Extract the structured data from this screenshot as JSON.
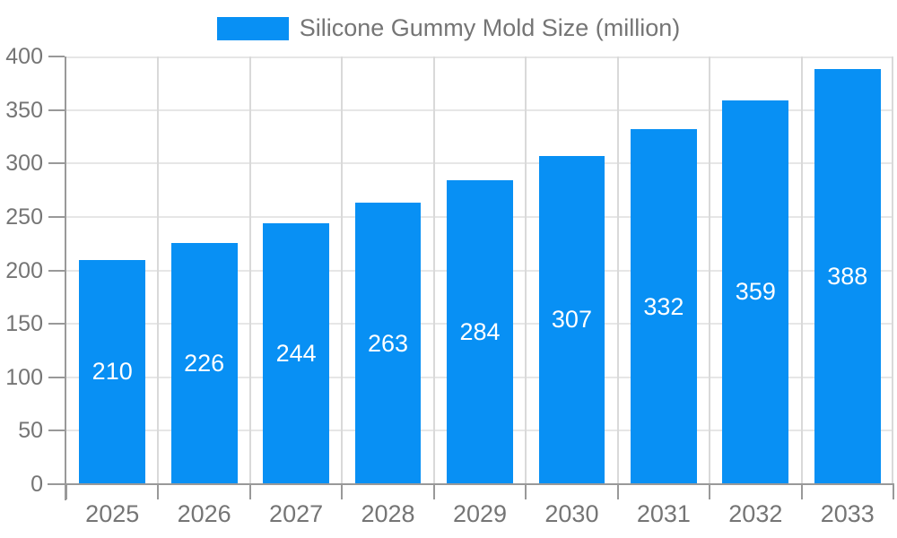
{
  "chart_data": {
    "type": "bar",
    "title": "Silicone Gummy Mold Size (million)",
    "categories": [
      "2025",
      "2026",
      "2027",
      "2028",
      "2029",
      "2030",
      "2031",
      "2032",
      "2033"
    ],
    "values": [
      210,
      226,
      244,
      263,
      284,
      307,
      332,
      359,
      388
    ],
    "xlabel": "",
    "ylabel": "",
    "ylim": [
      0,
      400
    ],
    "yticks": [
      0,
      50,
      100,
      150,
      200,
      250,
      300,
      350,
      400
    ],
    "grid": true,
    "legend_position": "top-center",
    "value_labels": "inside-center"
  },
  "legend": {
    "label": "Silicone Gummy Mold Size (million)"
  },
  "colors": {
    "bar": "#0890f4",
    "value_label": "#ffffff",
    "axis": "#999999",
    "grid_h": "#e6e6e6",
    "grid_v": "#d9d9d9",
    "text": "#757575",
    "background": "#ffffff"
  }
}
